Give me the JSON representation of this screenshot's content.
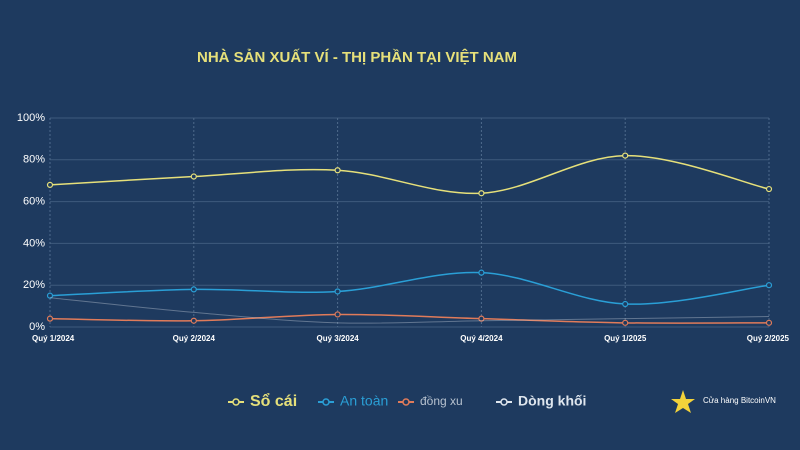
{
  "chart_data": {
    "type": "line",
    "title": "NHÀ SẢN XUẤT VÍ - THỊ PHẦN TẠI VIỆT NAM",
    "categories": [
      "Quý 1/2024",
      "Quý 2/2024",
      "Quý 3/2024",
      "Quý 4/2024",
      "Quý 1/2025",
      "Quý 2/2025"
    ],
    "series": [
      {
        "name": "Sổ cái",
        "color": "#e6e07a",
        "values": [
          68,
          72,
          75,
          64,
          82,
          66
        ]
      },
      {
        "name": "An toàn",
        "color": "#2a9fd6",
        "values": [
          15,
          18,
          17,
          26,
          11,
          20
        ]
      },
      {
        "name": "đồng xu",
        "color": "#e07b5a",
        "values": [
          4,
          3,
          6,
          4,
          2,
          2
        ]
      },
      {
        "name": "Dòng khối",
        "color": "#dfe6ee",
        "values": [
          14,
          7,
          2,
          3,
          4,
          5
        ]
      }
    ],
    "ylim": [
      0,
      100
    ],
    "yticks": [
      {
        "value": 0,
        "label": "0%"
      },
      {
        "value": 20,
        "label": "20%"
      },
      {
        "value": 40,
        "label": "40%"
      },
      {
        "value": 60,
        "label": "60%"
      },
      {
        "value": 80,
        "label": "80%"
      },
      {
        "value": 100,
        "label": "100%"
      }
    ],
    "grid": true,
    "legend": "bottom",
    "watermark": "Cửa hàng BitcoinVN"
  }
}
